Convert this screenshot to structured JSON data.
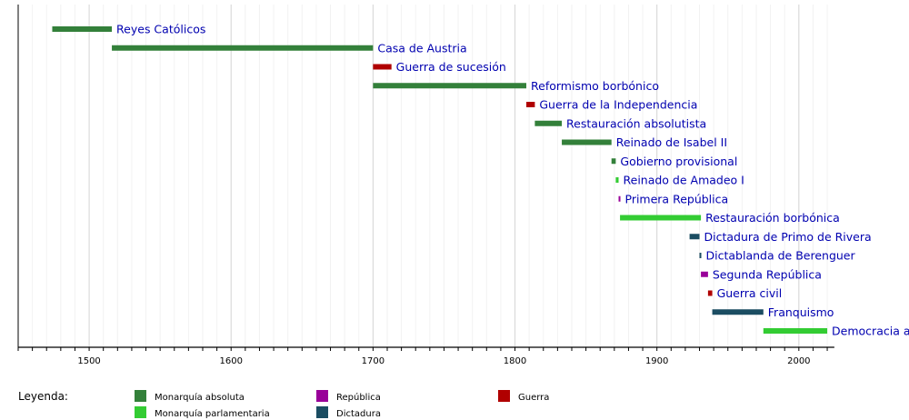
{
  "chart_data": {
    "type": "timeline",
    "xlim": [
      1450,
      2025
    ],
    "major_ticks": [
      1500,
      1600,
      1700,
      1800,
      1900,
      2000
    ],
    "minor_tick_step": 10,
    "grid": true,
    "colors": {
      "absoluta": "#33803a",
      "parlamentaria": "#33cc33",
      "republica": "#990099",
      "dictadura": "#1b4d62",
      "guerra": "#b00000"
    },
    "periods": [
      {
        "label": "Reyes Católicos",
        "start": 1474,
        "end": 1516,
        "type": "absoluta"
      },
      {
        "label": "Casa de Austria",
        "start": 1516,
        "end": 1700,
        "type": "absoluta"
      },
      {
        "label": "Guerra de sucesión",
        "start": 1700,
        "end": 1713,
        "type": "guerra"
      },
      {
        "label": "Reformismo borbónico",
        "start": 1700,
        "end": 1808,
        "type": "absoluta"
      },
      {
        "label": "Guerra de la Independencia",
        "start": 1808,
        "end": 1814,
        "type": "guerra"
      },
      {
        "label": "Restauración absolutista",
        "start": 1814,
        "end": 1833,
        "type": "absoluta"
      },
      {
        "label": "Reinado de Isabel II",
        "start": 1833,
        "end": 1868,
        "type": "absoluta"
      },
      {
        "label": "Gobierno provisional",
        "start": 1868,
        "end": 1871,
        "type": "absoluta"
      },
      {
        "label": "Reinado de Amadeo I",
        "start": 1871,
        "end": 1873,
        "type": "parlamentaria"
      },
      {
        "label": "Primera República",
        "start": 1873,
        "end": 1874,
        "type": "republica"
      },
      {
        "label": "Restauración borbónica",
        "start": 1874,
        "end": 1931,
        "type": "parlamentaria"
      },
      {
        "label": "Dictadura de Primo de Rivera",
        "start": 1923,
        "end": 1930,
        "type": "dictadura"
      },
      {
        "label": "Dictablanda de Berenguer",
        "start": 1930,
        "end": 1931,
        "type": "dictadura"
      },
      {
        "label": "Segunda República",
        "start": 1931,
        "end": 1936,
        "type": "republica"
      },
      {
        "label": "Guerra civil",
        "start": 1936,
        "end": 1939,
        "type": "guerra"
      },
      {
        "label": "Franquismo",
        "start": 1939,
        "end": 1975,
        "type": "dictadura"
      },
      {
        "label": "Democracia actual",
        "start": 1975,
        "end": 2020,
        "type": "parlamentaria"
      }
    ],
    "legend": {
      "title": "Leyenda:",
      "entries": [
        {
          "label": "Monarquía absoluta",
          "type": "absoluta"
        },
        {
          "label": "Monarquía parlamentaria",
          "type": "parlamentaria"
        },
        {
          "label": "República",
          "type": "republica"
        },
        {
          "label": "Dictadura",
          "type": "dictadura"
        },
        {
          "label": "Guerra",
          "type": "guerra"
        }
      ]
    }
  }
}
